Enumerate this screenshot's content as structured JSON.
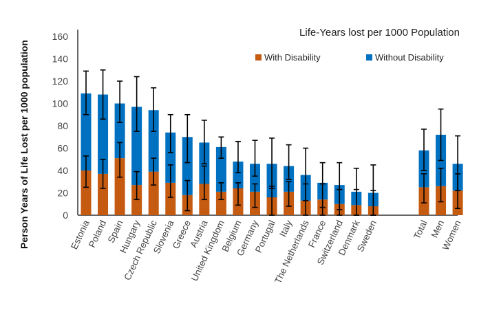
{
  "chart_data": {
    "type": "bar",
    "stacked": true,
    "title": "Life-Years lost per 1000 Population",
    "ylabel": "Person Years of Life Lost per 1000 population",
    "xlabel": "",
    "ylim": [
      0,
      160
    ],
    "yticks": [
      0,
      20,
      40,
      60,
      80,
      100,
      120,
      140,
      160
    ],
    "grid": false,
    "legend_position": "top-right",
    "categories": [
      "Estonia",
      "Poland",
      "Spain",
      "Hungary",
      "Czech Republic",
      "Slovenia",
      "Greece",
      "Austria",
      "United Kingdom",
      "Belgium",
      "Germany",
      "Portugal",
      "Italy",
      "The Netherlands",
      "France",
      "Switzerland",
      "Denmark",
      "Sweden",
      "Total",
      "Men",
      "Women"
    ],
    "series": [
      {
        "name": "With Disability",
        "color": "#C55A11",
        "values": [
          40,
          37,
          51,
          27,
          39,
          29,
          18,
          28,
          21,
          24,
          21,
          16,
          21,
          13,
          14,
          10,
          9,
          8,
          25,
          26,
          22
        ],
        "error_low": [
          25,
          24,
          34,
          14,
          27,
          16,
          4,
          14,
          14,
          9,
          7,
          0,
          8,
          0,
          0,
          0,
          0,
          0,
          11,
          12,
          6
        ],
        "error_high": [
          53,
          50,
          65,
          39,
          51,
          45,
          31,
          44,
          29,
          29,
          28,
          26,
          30,
          28,
          28,
          23,
          23,
          22,
          37,
          42,
          37
        ]
      },
      {
        "name": "Without Disability",
        "color": "#0070C0",
        "values": [
          69,
          71,
          49,
          70,
          55,
          45,
          52,
          37,
          40,
          24,
          25,
          30,
          23,
          23,
          15,
          17,
          12,
          12,
          33,
          46,
          24
        ],
        "error_low": [
          90,
          86,
          83,
          75,
          75,
          56,
          47,
          46,
          51,
          38,
          35,
          24,
          32,
          13,
          7,
          5,
          0,
          0,
          40,
          49,
          22
        ],
        "error_high": [
          129,
          130,
          120,
          124,
          114,
          90,
          90,
          85,
          70,
          66,
          67,
          69,
          63,
          60,
          47,
          47,
          42,
          45,
          77,
          95,
          71
        ]
      }
    ]
  }
}
